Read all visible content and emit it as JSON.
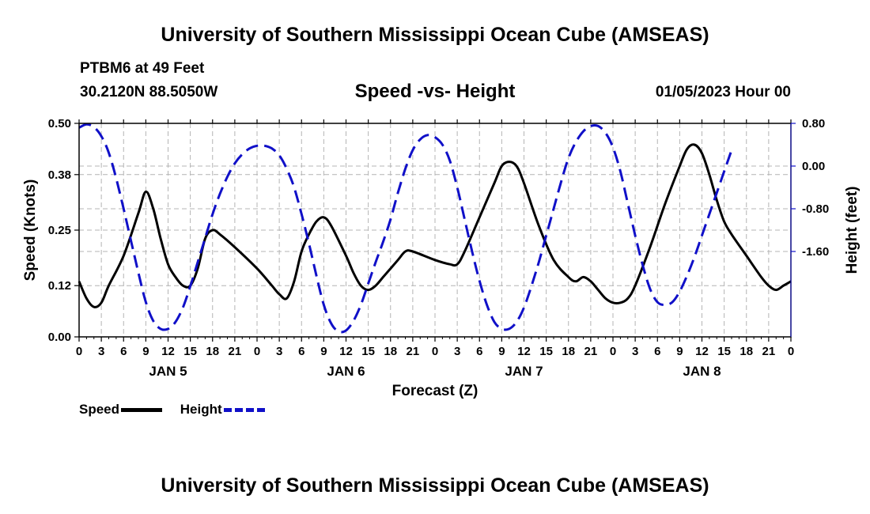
{
  "header": {
    "title": "University of Southern Mississippi Ocean Cube (AMSEAS)",
    "station": "PTBM6 at 49 Feet",
    "location": "30.2120N  88.5050W",
    "date": "01/05/2023 Hour 00",
    "footer_title": "University of Southern Mississippi Ocean Cube (AMSEAS)"
  },
  "chart_data": {
    "type": "line",
    "title": "Speed -vs- Height",
    "xlabel": "Forecast (Z)",
    "ylabel_left": "Speed (Knots)",
    "ylabel_right": "Height (feet)",
    "x_range_hours": [
      0,
      96
    ],
    "x_tick_labels": [
      "0",
      "3",
      "6",
      "9",
      "12",
      "15",
      "18",
      "21",
      "0",
      "3",
      "6",
      "9",
      "12",
      "15",
      "18",
      "21",
      "0",
      "3",
      "6",
      "9",
      "12",
      "15",
      "18",
      "21",
      "0",
      "3",
      "6",
      "9",
      "12",
      "15",
      "18",
      "21",
      "0"
    ],
    "day_labels": [
      {
        "label": "JAN 5",
        "hour": 12
      },
      {
        "label": "JAN 6",
        "hour": 36
      },
      {
        "label": "JAN 7",
        "hour": 60
      },
      {
        "label": "JAN 8",
        "hour": 84
      }
    ],
    "left_axis": {
      "min": 0,
      "max": 0.5,
      "ticks": [
        "0.00",
        "0.12",
        "0.25",
        "0.38",
        "0.50"
      ]
    },
    "right_axis": {
      "min": -3.2,
      "max": 0.8,
      "ticks": [
        "0.80",
        "0.00",
        "-0.80",
        "-1.60"
      ]
    },
    "grid": true,
    "series": [
      {
        "name": "Speed",
        "axis": "left",
        "color": "#000000",
        "style": "solid",
        "points": [
          [
            0,
            0.13
          ],
          [
            1,
            0.09
          ],
          [
            2,
            0.07
          ],
          [
            3,
            0.08
          ],
          [
            4,
            0.12
          ],
          [
            6,
            0.19
          ],
          [
            8,
            0.29
          ],
          [
            9,
            0.34
          ],
          [
            10,
            0.3
          ],
          [
            11,
            0.23
          ],
          [
            12,
            0.17
          ],
          [
            13,
            0.14
          ],
          [
            14,
            0.12
          ],
          [
            15,
            0.12
          ],
          [
            16,
            0.16
          ],
          [
            17,
            0.23
          ],
          [
            18,
            0.25
          ],
          [
            19,
            0.24
          ],
          [
            21,
            0.21
          ],
          [
            24,
            0.16
          ],
          [
            26,
            0.12
          ],
          [
            27,
            0.1
          ],
          [
            28,
            0.09
          ],
          [
            29,
            0.13
          ],
          [
            30,
            0.2
          ],
          [
            31,
            0.24
          ],
          [
            32,
            0.27
          ],
          [
            33,
            0.28
          ],
          [
            34,
            0.26
          ],
          [
            36,
            0.19
          ],
          [
            37,
            0.15
          ],
          [
            38,
            0.12
          ],
          [
            39,
            0.11
          ],
          [
            40,
            0.12
          ],
          [
            41,
            0.14
          ],
          [
            42,
            0.16
          ],
          [
            43,
            0.18
          ],
          [
            44,
            0.2
          ],
          [
            45,
            0.2
          ],
          [
            48,
            0.18
          ],
          [
            50,
            0.17
          ],
          [
            51,
            0.17
          ],
          [
            52,
            0.2
          ],
          [
            54,
            0.28
          ],
          [
            56,
            0.36
          ],
          [
            57,
            0.4
          ],
          [
            58,
            0.41
          ],
          [
            59,
            0.4
          ],
          [
            60,
            0.36
          ],
          [
            62,
            0.26
          ],
          [
            64,
            0.18
          ],
          [
            66,
            0.14
          ],
          [
            67,
            0.13
          ],
          [
            68,
            0.14
          ],
          [
            69,
            0.13
          ],
          [
            70,
            0.11
          ],
          [
            71,
            0.09
          ],
          [
            72,
            0.08
          ],
          [
            73,
            0.08
          ],
          [
            74,
            0.09
          ],
          [
            75,
            0.12
          ],
          [
            77,
            0.21
          ],
          [
            79,
            0.31
          ],
          [
            81,
            0.4
          ],
          [
            82,
            0.44
          ],
          [
            83,
            0.45
          ],
          [
            84,
            0.43
          ],
          [
            85,
            0.38
          ],
          [
            86,
            0.32
          ],
          [
            87,
            0.27
          ],
          [
            88,
            0.24
          ],
          [
            90,
            0.19
          ],
          [
            92,
            0.14
          ],
          [
            93,
            0.12
          ],
          [
            94,
            0.11
          ],
          [
            95,
            0.12
          ],
          [
            96,
            0.13
          ]
        ]
      },
      {
        "name": "Height",
        "axis": "right",
        "color": "#1010c8",
        "style": "dashed",
        "points": [
          [
            0,
            0.72
          ],
          [
            1,
            0.78
          ],
          [
            2,
            0.73
          ],
          [
            3,
            0.56
          ],
          [
            4,
            0.25
          ],
          [
            5,
            -0.23
          ],
          [
            6,
            -0.8
          ],
          [
            7,
            -1.4
          ],
          [
            8,
            -2.0
          ],
          [
            9,
            -2.55
          ],
          [
            10,
            -2.9
          ],
          [
            11,
            -3.05
          ],
          [
            12,
            -3.05
          ],
          [
            13,
            -2.92
          ],
          [
            14,
            -2.65
          ],
          [
            15,
            -2.25
          ],
          [
            16,
            -1.8
          ],
          [
            17,
            -1.35
          ],
          [
            18,
            -0.9
          ],
          [
            19,
            -0.52
          ],
          [
            20,
            -0.2
          ],
          [
            21,
            0.05
          ],
          [
            22,
            0.22
          ],
          [
            23,
            0.33
          ],
          [
            24,
            0.38
          ],
          [
            25,
            0.38
          ],
          [
            26,
            0.33
          ],
          [
            27,
            0.2
          ],
          [
            28,
            -0.05
          ],
          [
            29,
            -0.4
          ],
          [
            30,
            -0.9
          ],
          [
            31,
            -1.45
          ],
          [
            32,
            -2.05
          ],
          [
            33,
            -2.6
          ],
          [
            34,
            -2.95
          ],
          [
            35,
            -3.1
          ],
          [
            36,
            -3.08
          ],
          [
            37,
            -2.9
          ],
          [
            38,
            -2.6
          ],
          [
            39,
            -2.2
          ],
          [
            40,
            -1.8
          ],
          [
            41,
            -1.42
          ],
          [
            42,
            -1.0
          ],
          [
            43,
            -0.5
          ],
          [
            44,
            -0.05
          ],
          [
            45,
            0.3
          ],
          [
            46,
            0.5
          ],
          [
            47,
            0.58
          ],
          [
            48,
            0.54
          ],
          [
            49,
            0.4
          ],
          [
            50,
            0.1
          ],
          [
            51,
            -0.4
          ],
          [
            52,
            -1.0
          ],
          [
            53,
            -1.6
          ],
          [
            54,
            -2.15
          ],
          [
            55,
            -2.6
          ],
          [
            56,
            -2.92
          ],
          [
            57,
            -3.05
          ],
          [
            58,
            -3.05
          ],
          [
            59,
            -2.92
          ],
          [
            60,
            -2.65
          ],
          [
            61,
            -2.25
          ],
          [
            62,
            -1.8
          ],
          [
            63,
            -1.3
          ],
          [
            64,
            -0.8
          ],
          [
            65,
            -0.3
          ],
          [
            66,
            0.15
          ],
          [
            67,
            0.45
          ],
          [
            68,
            0.65
          ],
          [
            69,
            0.75
          ],
          [
            70,
            0.75
          ],
          [
            71,
            0.62
          ],
          [
            72,
            0.35
          ],
          [
            73,
            -0.1
          ],
          [
            74,
            -0.7
          ],
          [
            75,
            -1.3
          ],
          [
            76,
            -1.85
          ],
          [
            77,
            -2.3
          ],
          [
            78,
            -2.55
          ],
          [
            79,
            -2.6
          ],
          [
            80,
            -2.55
          ],
          [
            81,
            -2.35
          ],
          [
            82,
            -2.05
          ],
          [
            83,
            -1.7
          ],
          [
            84,
            -1.3
          ],
          [
            85,
            -0.9
          ],
          [
            86,
            -0.5
          ],
          [
            87,
            -0.1
          ],
          [
            88,
            0.3
          ]
        ]
      }
    ]
  },
  "legend": {
    "speed_label": "Speed",
    "height_label": "Height",
    "speed_color": "#000000",
    "height_color": "#1010c8"
  }
}
